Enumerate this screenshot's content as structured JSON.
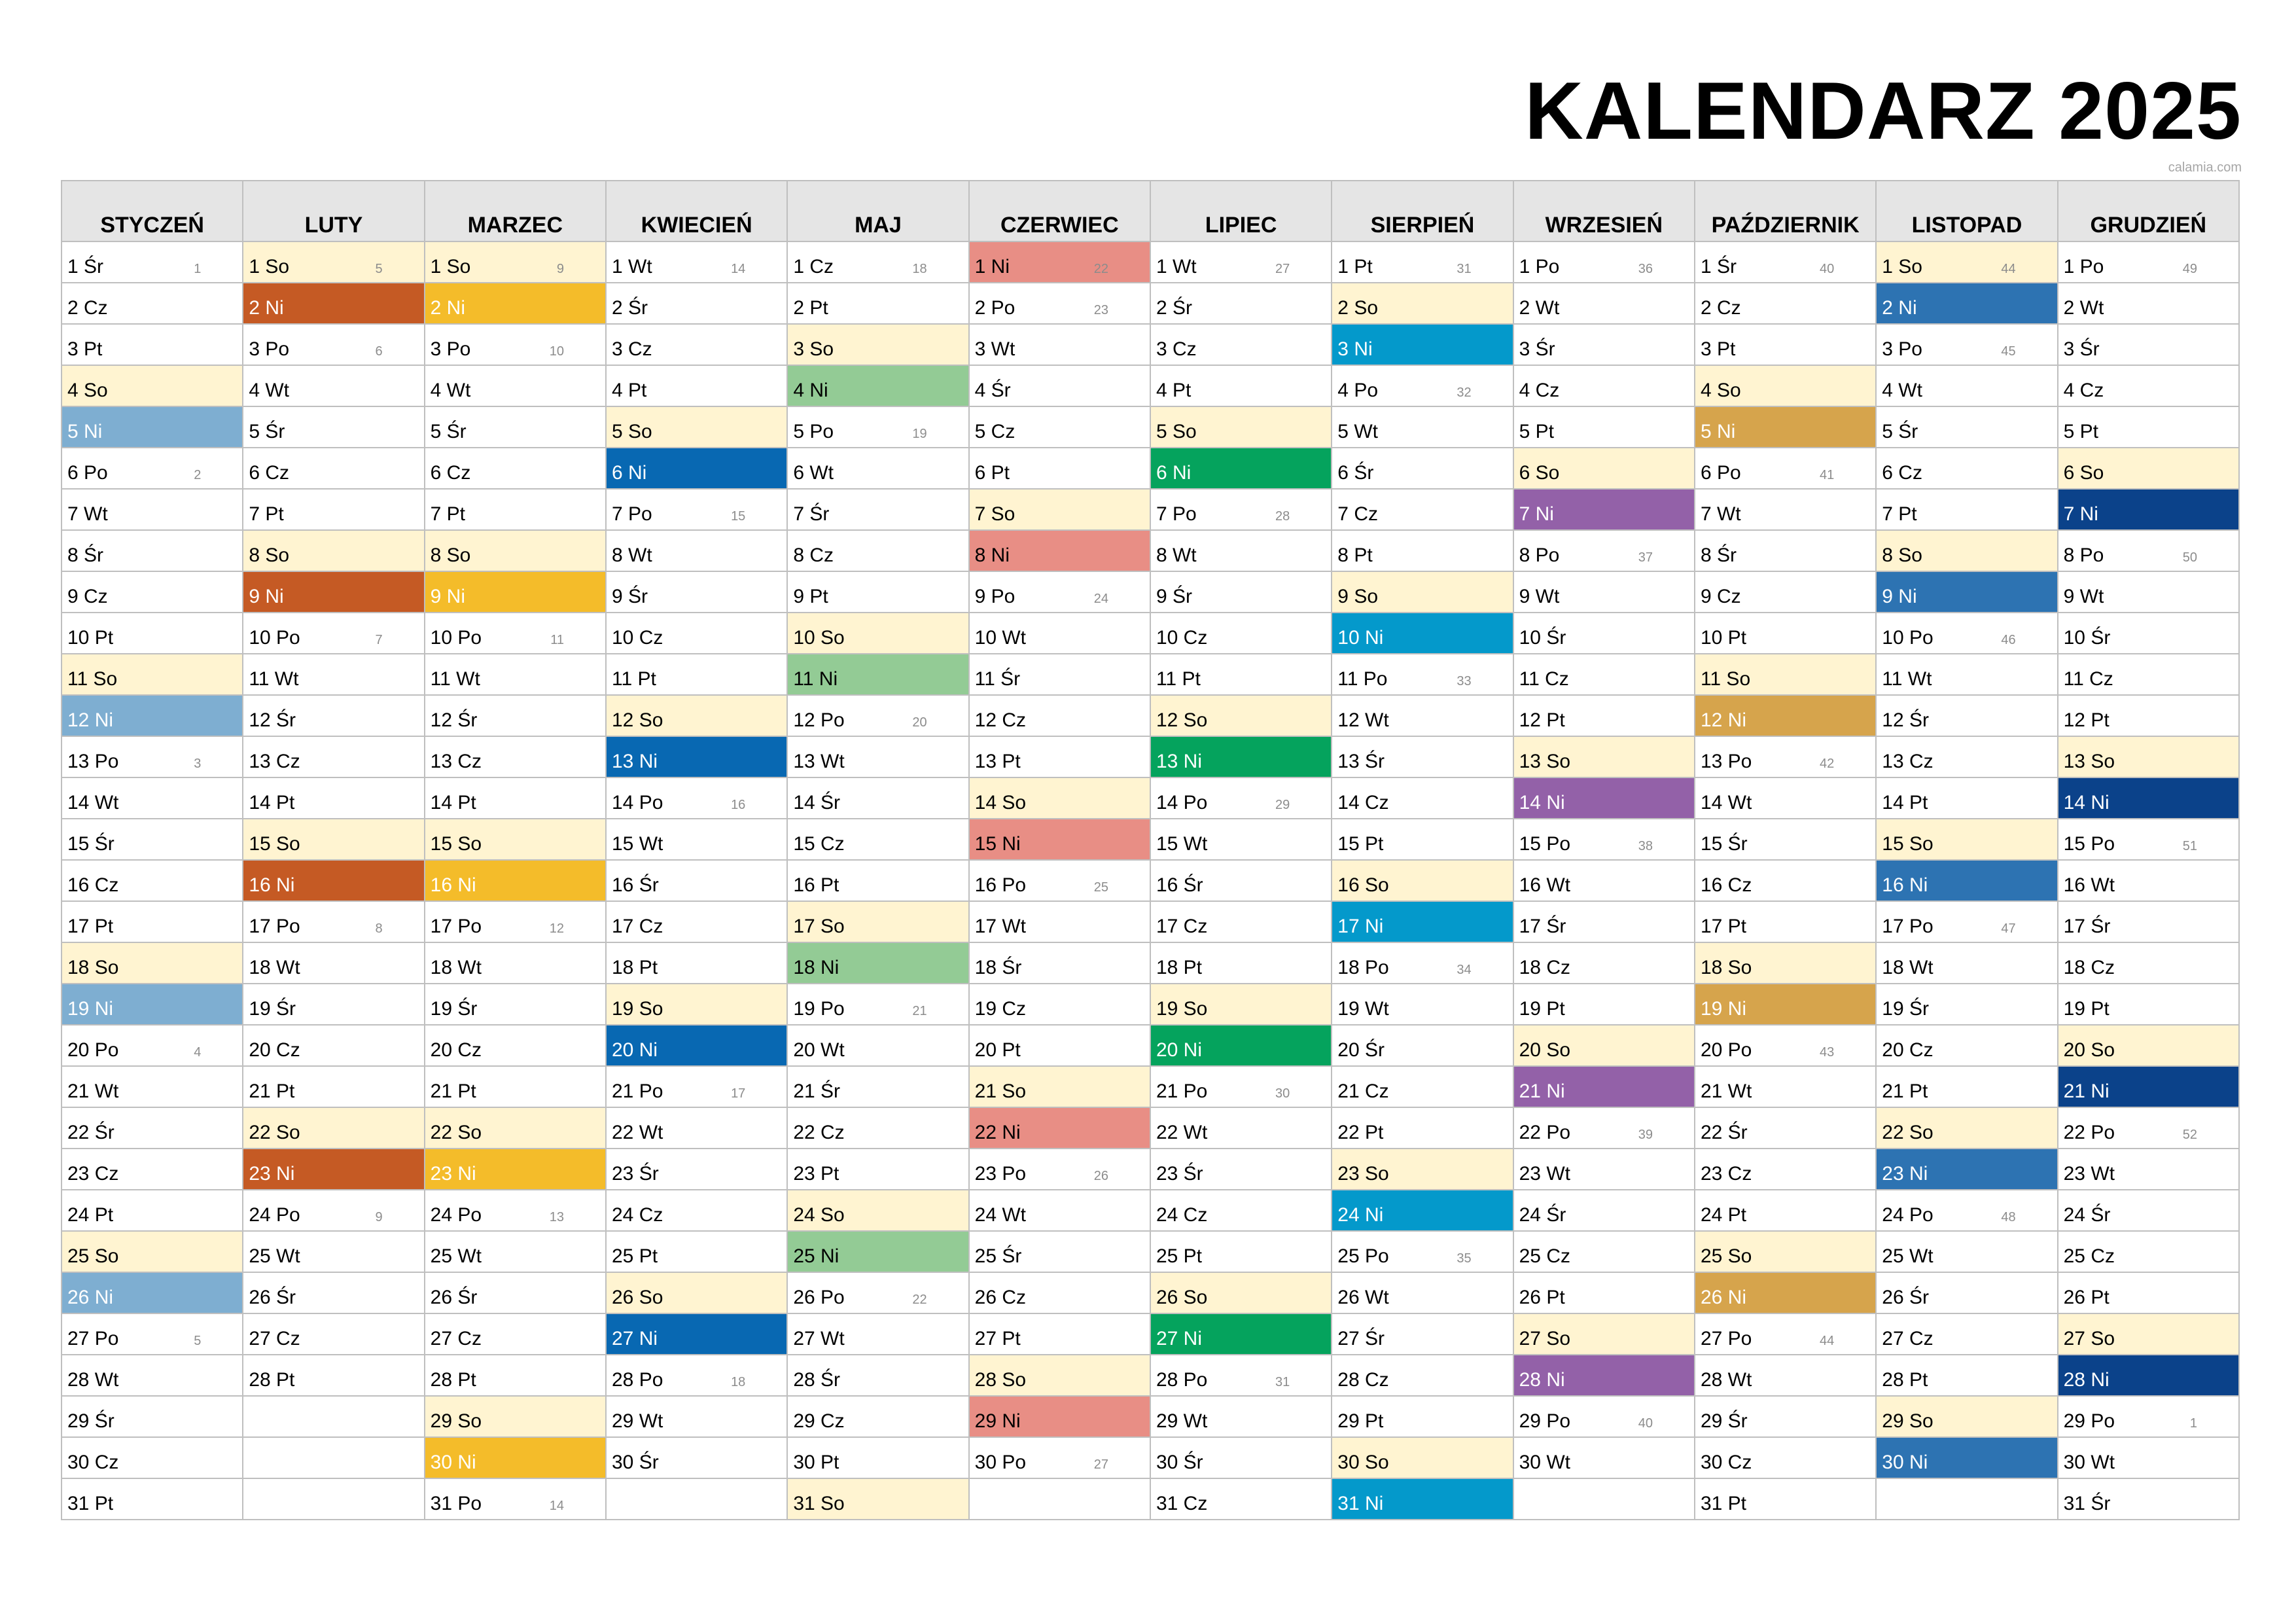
{
  "title": "KALENDARZ 2025",
  "source": "calamia.com",
  "colors": {
    "grid": "#bfbfbf",
    "header_bg": "#e5e5e5",
    "saturday": "#fff4d1",
    "sunday": [
      "#7eaed1",
      "#c55a24",
      "#f4bc2a",
      "#0868b2",
      "#93cb95",
      "#e88e85",
      "#05a35d",
      "#0499cb",
      "#9361a8",
      "#d6a44c",
      "#2d73b2",
      "#0b428a"
    ]
  },
  "months": [
    {
      "name": "STYCZEŃ",
      "days": [
        "1 Śr",
        "2 Cz",
        "3 Pt",
        "4 So",
        "5 Ni",
        "6 Po",
        "7 Wt",
        "8 Śr",
        "9 Cz",
        "10 Pt",
        "11 So",
        "12 Ni",
        "13 Po",
        "14 Wt",
        "15 Śr",
        "16 Cz",
        "17 Pt",
        "18 So",
        "19 Ni",
        "20 Po",
        "21 Wt",
        "22 Śr",
        "23 Cz",
        "24 Pt",
        "25 So",
        "26 Ni",
        "27 Po",
        "28 Wt",
        "29 Śr",
        "30 Cz",
        "31 Pt"
      ],
      "weeks": {
        "1": "1",
        "6": "2",
        "13": "3",
        "20": "4",
        "27": "5"
      }
    },
    {
      "name": "LUTY",
      "days": [
        "1 So",
        "2 Ni",
        "3 Po",
        "4 Wt",
        "5 Śr",
        "6 Cz",
        "7 Pt",
        "8 So",
        "9 Ni",
        "10 Po",
        "11 Wt",
        "12 Śr",
        "13 Cz",
        "14 Pt",
        "15 So",
        "16 Ni",
        "17 Po",
        "18 Wt",
        "19 Śr",
        "20 Cz",
        "21 Pt",
        "22 So",
        "23 Ni",
        "24 Po",
        "25 Wt",
        "26 Śr",
        "27 Cz",
        "28 Pt"
      ],
      "weeks": {
        "1": "5",
        "3": "6",
        "10": "7",
        "17": "8",
        "24": "9"
      }
    },
    {
      "name": "MARZEC",
      "days": [
        "1 So",
        "2 Ni",
        "3 Po",
        "4 Wt",
        "5 Śr",
        "6 Cz",
        "7 Pt",
        "8 So",
        "9 Ni",
        "10 Po",
        "11 Wt",
        "12 Śr",
        "13 Cz",
        "14 Pt",
        "15 So",
        "16 Ni",
        "17 Po",
        "18 Wt",
        "19 Śr",
        "20 Cz",
        "21 Pt",
        "22 So",
        "23 Ni",
        "24 Po",
        "25 Wt",
        "26 Śr",
        "27 Cz",
        "28 Pt",
        "29 So",
        "30 Ni",
        "31 Po"
      ],
      "weeks": {
        "1": "9",
        "3": "10",
        "10": "11",
        "17": "12",
        "24": "13",
        "31": "14"
      }
    },
    {
      "name": "KWIECIEŃ",
      "days": [
        "1 Wt",
        "2 Śr",
        "3 Cz",
        "4 Pt",
        "5 So",
        "6 Ni",
        "7 Po",
        "8 Wt",
        "9 Śr",
        "10 Cz",
        "11 Pt",
        "12 So",
        "13 Ni",
        "14 Po",
        "15 Wt",
        "16 Śr",
        "17 Cz",
        "18 Pt",
        "19 So",
        "20 Ni",
        "21 Po",
        "22 Wt",
        "23 Śr",
        "24 Cz",
        "25 Pt",
        "26 So",
        "27 Ni",
        "28 Po",
        "29 Wt",
        "30 Śr"
      ],
      "weeks": {
        "1": "14",
        "7": "15",
        "14": "16",
        "21": "17",
        "28": "18"
      }
    },
    {
      "name": "MAJ",
      "days": [
        "1 Cz",
        "2 Pt",
        "3 So",
        "4 Ni",
        "5 Po",
        "6 Wt",
        "7 Śr",
        "8 Cz",
        "9 Pt",
        "10 So",
        "11 Ni",
        "12 Po",
        "13 Wt",
        "14 Śr",
        "15 Cz",
        "16 Pt",
        "17 So",
        "18 Ni",
        "19 Po",
        "20 Wt",
        "21 Śr",
        "22 Cz",
        "23 Pt",
        "24 So",
        "25 Ni",
        "26 Po",
        "27 Wt",
        "28 Śr",
        "29 Cz",
        "30 Pt",
        "31 So"
      ],
      "weeks": {
        "1": "18",
        "5": "19",
        "12": "20",
        "19": "21",
        "26": "22"
      }
    },
    {
      "name": "CZERWIEC",
      "days": [
        "1 Ni",
        "2 Po",
        "3 Wt",
        "4 Śr",
        "5 Cz",
        "6 Pt",
        "7 So",
        "8 Ni",
        "9 Po",
        "10 Wt",
        "11 Śr",
        "12 Cz",
        "13 Pt",
        "14 So",
        "15 Ni",
        "16 Po",
        "17 Wt",
        "18 Śr",
        "19 Cz",
        "20 Pt",
        "21 So",
        "22 Ni",
        "23 Po",
        "24 Wt",
        "25 Śr",
        "26 Cz",
        "27 Pt",
        "28 So",
        "29 Ni",
        "30 Po"
      ],
      "weeks": {
        "1": "22",
        "2": "23",
        "9": "24",
        "16": "25",
        "23": "26",
        "30": "27"
      }
    },
    {
      "name": "LIPIEC",
      "days": [
        "1 Wt",
        "2 Śr",
        "3 Cz",
        "4 Pt",
        "5 So",
        "6 Ni",
        "7 Po",
        "8 Wt",
        "9 Śr",
        "10 Cz",
        "11 Pt",
        "12 So",
        "13 Ni",
        "14 Po",
        "15 Wt",
        "16 Śr",
        "17 Cz",
        "18 Pt",
        "19 So",
        "20 Ni",
        "21 Po",
        "22 Wt",
        "23 Śr",
        "24 Cz",
        "25 Pt",
        "26 So",
        "27 Ni",
        "28 Po",
        "29 Wt",
        "30 Śr",
        "31 Cz"
      ],
      "weeks": {
        "1": "27",
        "7": "28",
        "14": "29",
        "21": "30",
        "28": "31"
      }
    },
    {
      "name": "SIERPIEŃ",
      "days": [
        "1 Pt",
        "2 So",
        "3 Ni",
        "4 Po",
        "5 Wt",
        "6 Śr",
        "7 Cz",
        "8 Pt",
        "9 So",
        "10 Ni",
        "11 Po",
        "12 Wt",
        "13 Śr",
        "14 Cz",
        "15 Pt",
        "16 So",
        "17 Ni",
        "18 Po",
        "19 Wt",
        "20 Śr",
        "21 Cz",
        "22 Pt",
        "23 So",
        "24 Ni",
        "25 Po",
        "26 Wt",
        "27 Śr",
        "28 Cz",
        "29 Pt",
        "30 So",
        "31 Ni"
      ],
      "weeks": {
        "1": "31",
        "4": "32",
        "11": "33",
        "18": "34",
        "25": "35"
      }
    },
    {
      "name": "WRZESIEŃ",
      "days": [
        "1 Po",
        "2 Wt",
        "3 Śr",
        "4 Cz",
        "5 Pt",
        "6 So",
        "7 Ni",
        "8 Po",
        "9 Wt",
        "10 Śr",
        "11 Cz",
        "12 Pt",
        "13 So",
        "14 Ni",
        "15 Po",
        "16 Wt",
        "17 Śr",
        "18 Cz",
        "19 Pt",
        "20 So",
        "21 Ni",
        "22 Po",
        "23 Wt",
        "24 Śr",
        "25 Cz",
        "26 Pt",
        "27 So",
        "28 Ni",
        "29 Po",
        "30 Wt"
      ],
      "weeks": {
        "1": "36",
        "8": "37",
        "15": "38",
        "22": "39",
        "29": "40"
      }
    },
    {
      "name": "PAŹDZIERNIK",
      "days": [
        "1 Śr",
        "2 Cz",
        "3 Pt",
        "4 So",
        "5 Ni",
        "6 Po",
        "7 Wt",
        "8 Śr",
        "9 Cz",
        "10 Pt",
        "11 So",
        "12 Ni",
        "13 Po",
        "14 Wt",
        "15 Śr",
        "16 Cz",
        "17 Pt",
        "18 So",
        "19 Ni",
        "20 Po",
        "21 Wt",
        "22 Śr",
        "23 Cz",
        "24 Pt",
        "25 So",
        "26 Ni",
        "27 Po",
        "28 Wt",
        "29 Śr",
        "30 Cz",
        "31 Pt"
      ],
      "weeks": {
        "1": "40",
        "6": "41",
        "13": "42",
        "20": "43",
        "27": "44"
      }
    },
    {
      "name": "LISTOPAD",
      "days": [
        "1 So",
        "2 Ni",
        "3 Po",
        "4 Wt",
        "5 Śr",
        "6 Cz",
        "7 Pt",
        "8 So",
        "9 Ni",
        "10 Po",
        "11 Wt",
        "12 Śr",
        "13 Cz",
        "14 Pt",
        "15 So",
        "16 Ni",
        "17 Po",
        "18 Wt",
        "19 Śr",
        "20 Cz",
        "21 Pt",
        "22 So",
        "23 Ni",
        "24 Po",
        "25 Wt",
        "26 Śr",
        "27 Cz",
        "28 Pt",
        "29 So",
        "30 Ni"
      ],
      "weeks": {
        "1": "44",
        "3": "45",
        "10": "46",
        "17": "47",
        "24": "48"
      }
    },
    {
      "name": "GRUDZIEŃ",
      "days": [
        "1 Po",
        "2 Wt",
        "3 Śr",
        "4 Cz",
        "5 Pt",
        "6 So",
        "7 Ni",
        "8 Po",
        "9 Wt",
        "10 Śr",
        "11 Cz",
        "12 Pt",
        "13 So",
        "14 Ni",
        "15 Po",
        "16 Wt",
        "17 Śr",
        "18 Cz",
        "19 Pt",
        "20 So",
        "21 Ni",
        "22 Po",
        "23 Wt",
        "24 Śr",
        "25 Cz",
        "26 Pt",
        "27 So",
        "28 Ni",
        "29 Po",
        "30 Wt",
        "31 Śr"
      ],
      "weeks": {
        "1": "49",
        "8": "50",
        "15": "51",
        "22": "52",
        "29": "1"
      }
    }
  ]
}
